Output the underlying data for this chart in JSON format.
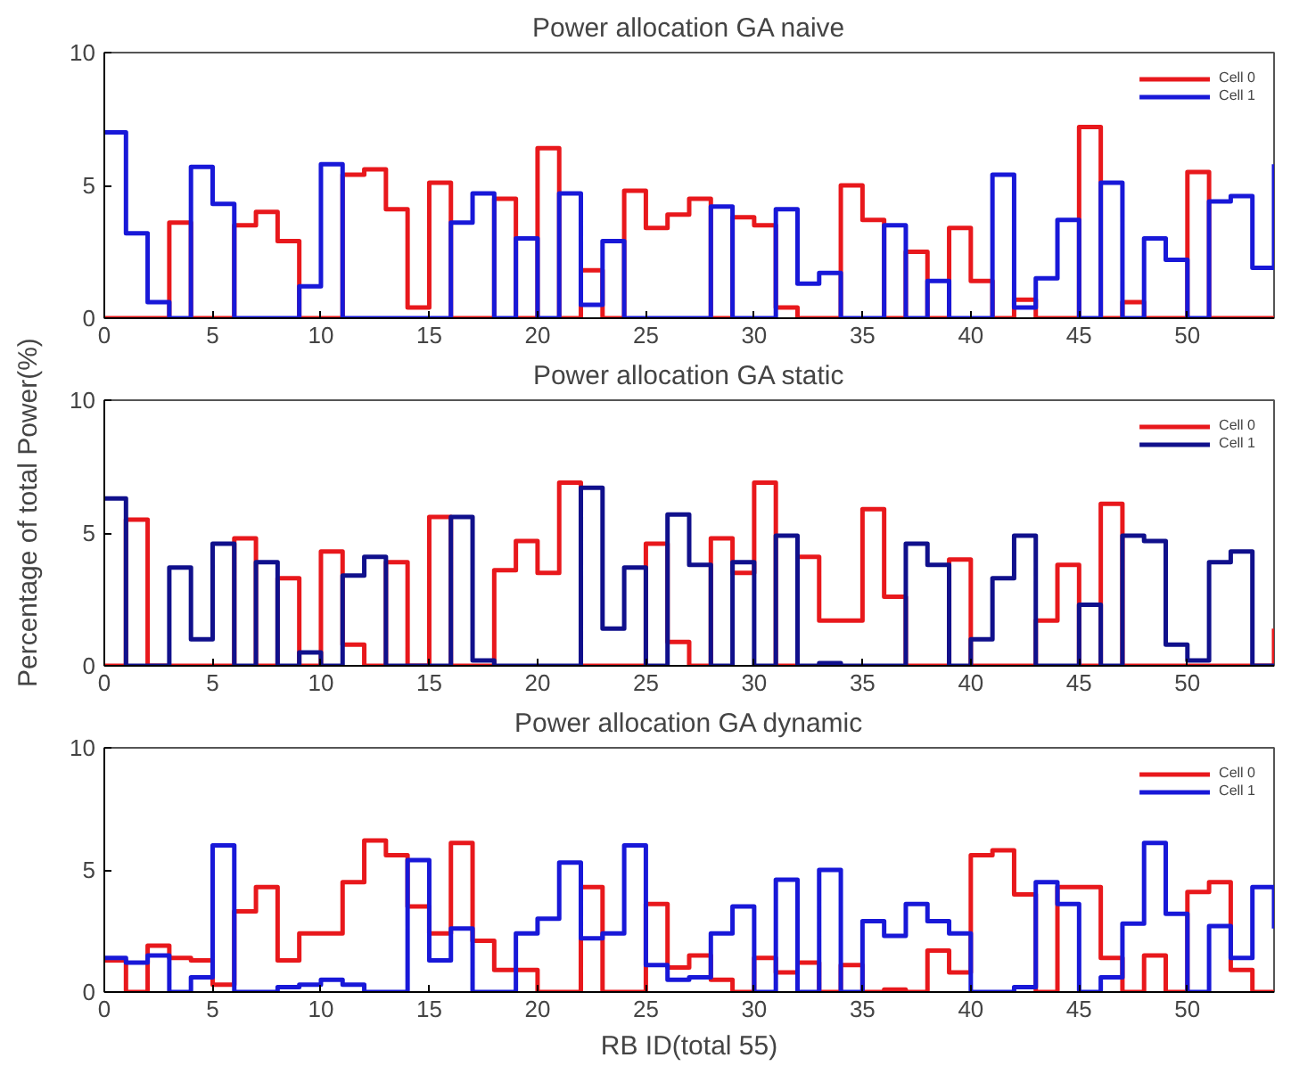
{
  "chart_data": [
    {
      "type": "step",
      "title": "Power allocation GA naive",
      "x": [
        0,
        1,
        2,
        3,
        4,
        5,
        6,
        7,
        8,
        9,
        10,
        11,
        12,
        13,
        14,
        15,
        16,
        17,
        18,
        19,
        20,
        21,
        22,
        23,
        24,
        25,
        26,
        27,
        28,
        29,
        30,
        31,
        32,
        33,
        34,
        35,
        36,
        37,
        38,
        39,
        40,
        41,
        42,
        43,
        44,
        45,
        46,
        47,
        48,
        49,
        50,
        51,
        52,
        53,
        54
      ],
      "xlim": [
        0,
        54
      ],
      "xticks": [
        0,
        5,
        10,
        15,
        20,
        25,
        30,
        35,
        40,
        45,
        50
      ],
      "ylim": [
        0,
        10
      ],
      "yticks": [
        0,
        5,
        10
      ],
      "legend": "top right",
      "series": [
        {
          "name": "Cell 0",
          "color": "#e8181c",
          "values": [
            0,
            0,
            0,
            3.6,
            0,
            0,
            3.5,
            4.0,
            2.9,
            0,
            0,
            5.4,
            5.6,
            4.1,
            0.4,
            5.1,
            0,
            0,
            4.5,
            0,
            6.4,
            0,
            1.8,
            0,
            4.8,
            3.4,
            3.9,
            4.5,
            0,
            3.8,
            3.5,
            0.4,
            0,
            0,
            5.0,
            3.7,
            0,
            2.5,
            0,
            3.4,
            1.4,
            0,
            0.7,
            0,
            0,
            7.2,
            0,
            0.6,
            0,
            0,
            5.5,
            0,
            0,
            0,
            0
          ]
        },
        {
          "name": "Cell 1",
          "color": "#1818d8",
          "values": [
            7.0,
            3.2,
            0.6,
            0,
            5.7,
            4.3,
            0,
            0,
            0,
            1.2,
            5.8,
            0,
            0,
            0,
            0,
            0,
            3.6,
            4.7,
            0,
            3.0,
            0,
            4.7,
            0.5,
            2.9,
            0,
            0,
            0,
            0,
            4.2,
            0,
            0,
            4.1,
            1.3,
            1.7,
            0,
            0,
            3.5,
            0,
            1.4,
            0,
            0,
            5.4,
            0.4,
            1.5,
            3.7,
            0,
            5.1,
            0,
            3.0,
            2.2,
            0,
            4.4,
            4.6,
            1.9,
            5.8
          ]
        }
      ]
    },
    {
      "type": "step",
      "title": "Power allocation GA static",
      "ylabel": "Percentage of total Power(%)",
      "x": [
        0,
        1,
        2,
        3,
        4,
        5,
        6,
        7,
        8,
        9,
        10,
        11,
        12,
        13,
        14,
        15,
        16,
        17,
        18,
        19,
        20,
        21,
        22,
        23,
        24,
        25,
        26,
        27,
        28,
        29,
        30,
        31,
        32,
        33,
        34,
        35,
        36,
        37,
        38,
        39,
        40,
        41,
        42,
        43,
        44,
        45,
        46,
        47,
        48,
        49,
        50,
        51,
        52,
        53,
        54
      ],
      "xlim": [
        0,
        54
      ],
      "xticks": [
        0,
        5,
        10,
        15,
        20,
        25,
        30,
        35,
        40,
        45,
        50
      ],
      "ylim": [
        0,
        10
      ],
      "yticks": [
        0,
        5,
        10
      ],
      "legend": "top right",
      "series": [
        {
          "name": "Cell 0",
          "color": "#e8181c",
          "values": [
            0,
            5.5,
            0,
            0,
            0,
            0,
            4.8,
            0,
            3.3,
            0,
            4.3,
            0.8,
            0,
            3.9,
            0,
            5.6,
            0,
            0,
            3.6,
            4.7,
            3.5,
            6.9,
            0,
            0,
            0,
            4.6,
            0.9,
            0,
            4.8,
            3.5,
            6.9,
            0,
            4.1,
            1.7,
            1.7,
            5.9,
            2.6,
            0,
            0,
            4.0,
            0,
            0,
            0,
            1.7,
            3.8,
            0,
            6.1,
            0,
            0,
            0,
            0,
            0,
            0,
            0,
            1.4
          ]
        },
        {
          "name": "Cell 1",
          "color": "#10108c",
          "values": [
            6.3,
            0,
            0,
            3.7,
            1.0,
            4.6,
            0,
            3.9,
            0,
            0.5,
            0,
            3.4,
            4.1,
            0,
            0,
            0,
            5.6,
            0.2,
            0,
            0,
            0,
            0,
            6.7,
            1.4,
            3.7,
            0,
            5.7,
            3.8,
            0,
            3.9,
            0,
            4.9,
            0,
            0.1,
            0,
            0,
            0,
            4.6,
            3.8,
            0,
            1.0,
            3.3,
            4.9,
            0,
            0,
            2.3,
            0,
            4.9,
            4.7,
            0.8,
            0.2,
            3.9,
            4.3,
            0,
            0
          ]
        }
      ]
    },
    {
      "type": "step",
      "title": "Power allocation GA dynamic",
      "xlabel": "RB ID(total 55)",
      "x": [
        0,
        1,
        2,
        3,
        4,
        5,
        6,
        7,
        8,
        9,
        10,
        11,
        12,
        13,
        14,
        15,
        16,
        17,
        18,
        19,
        20,
        21,
        22,
        23,
        24,
        25,
        26,
        27,
        28,
        29,
        30,
        31,
        32,
        33,
        34,
        35,
        36,
        37,
        38,
        39,
        40,
        41,
        42,
        43,
        44,
        45,
        46,
        47,
        48,
        49,
        50,
        51,
        52,
        53,
        54
      ],
      "xlim": [
        0,
        54
      ],
      "xticks": [
        0,
        5,
        10,
        15,
        20,
        25,
        30,
        35,
        40,
        45,
        50
      ],
      "ylim": [
        0,
        10
      ],
      "yticks": [
        0,
        5,
        10
      ],
      "legend": "top right",
      "series": [
        {
          "name": "Cell 0",
          "color": "#e8181c",
          "values": [
            1.3,
            0,
            1.9,
            1.4,
            1.3,
            0.3,
            3.3,
            4.3,
            1.3,
            2.4,
            2.4,
            4.5,
            6.2,
            5.6,
            3.5,
            2.4,
            6.1,
            2.1,
            0.9,
            0.9,
            0,
            0,
            4.3,
            0,
            0,
            3.6,
            1.0,
            1.5,
            0.5,
            0,
            1.4,
            0.8,
            1.2,
            0,
            1.1,
            0,
            0.1,
            0,
            1.7,
            0.8,
            5.6,
            5.8,
            4.0,
            0,
            4.3,
            4.3,
            1.4,
            0,
            1.5,
            0,
            4.1,
            4.5,
            0.9,
            0,
            0
          ]
        },
        {
          "name": "Cell 1",
          "color": "#1818d8",
          "values": [
            1.4,
            1.2,
            1.5,
            0,
            0.6,
            6.0,
            0,
            0,
            0.2,
            0.3,
            0.5,
            0.3,
            0,
            0,
            5.4,
            1.3,
            2.6,
            0,
            0,
            2.4,
            3.0,
            5.3,
            2.2,
            2.4,
            6.0,
            1.1,
            0.5,
            0.6,
            2.4,
            3.5,
            0,
            4.6,
            0,
            5.0,
            0,
            2.9,
            2.3,
            3.6,
            2.9,
            2.4,
            0,
            0,
            0.2,
            4.5,
            3.6,
            0,
            0.6,
            2.8,
            6.1,
            3.2,
            0,
            2.7,
            1.4,
            4.3,
            2.6
          ]
        }
      ]
    }
  ]
}
